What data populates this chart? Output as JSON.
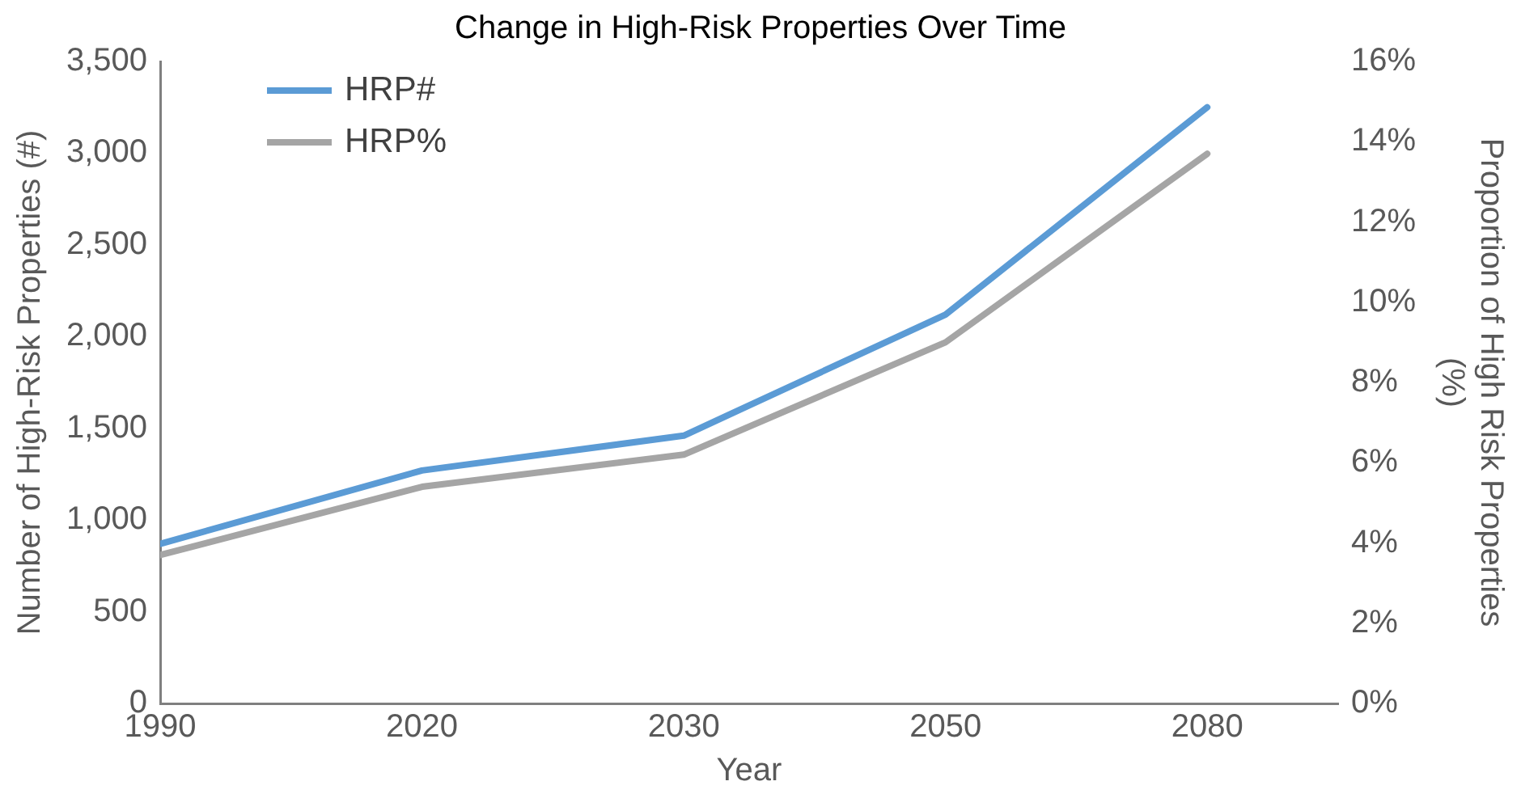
{
  "chart_data": {
    "type": "line",
    "title": "Change in High-Risk Properties Over Time",
    "xlabel": "Year",
    "ylabel": "Number of High-Risk Properties (#)",
    "y2label": "Proportion of High Risk Properties (%)",
    "categories": [
      "1990",
      "2020",
      "2030",
      "2050",
      "2080"
    ],
    "series": [
      {
        "name": "HRP#",
        "color": "#5b9bd5",
        "values": [
          870,
          1270,
          1460,
          2120,
          3250
        ]
      },
      {
        "name": "HRP%",
        "color": "#a5a5a5",
        "axis": "y2",
        "values": [
          3.7,
          5.4,
          6.2,
          9.0,
          13.7
        ]
      }
    ],
    "ylim": [
      0,
      3500
    ],
    "yticks": [
      0,
      {
        "value": 500,
        "label": "500"
      },
      {
        "value": 1000,
        "label": "1,000"
      },
      {
        "value": 1500,
        "label": "1,500"
      },
      {
        "value": 2000,
        "label": "2,000"
      },
      {
        "value": 2500,
        "label": "2,500"
      },
      {
        "value": 3000,
        "label": "3,000"
      },
      {
        "value": 3500,
        "label": "3,500"
      }
    ],
    "y2lim": [
      0,
      16
    ],
    "y2ticks": [
      {
        "value": 0,
        "label": "0%"
      },
      {
        "value": 2,
        "label": "2%"
      },
      {
        "value": 4,
        "label": "4%"
      },
      {
        "value": 6,
        "label": "6%"
      },
      {
        "value": 8,
        "label": "8%"
      },
      {
        "value": 10,
        "label": "10%"
      },
      {
        "value": 12,
        "label": "12%"
      },
      {
        "value": 14,
        "label": "14%"
      },
      {
        "value": 16,
        "label": "16%"
      }
    ],
    "grid": false,
    "legend": "top left",
    "marker": "none",
    "line_style": "solid"
  }
}
